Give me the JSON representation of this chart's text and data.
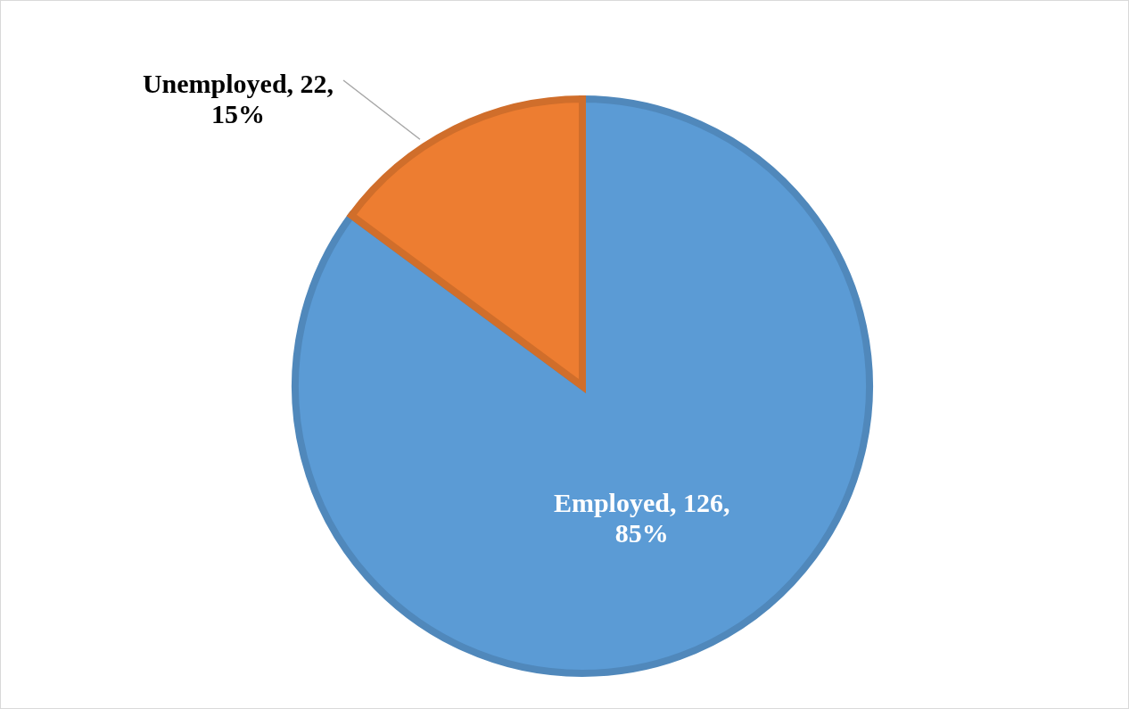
{
  "chart_data": {
    "type": "pie",
    "categories": [
      "Employed",
      "Unemployed"
    ],
    "values": [
      126,
      22
    ],
    "colors": [
      "#5b9bd5",
      "#ed7d31"
    ],
    "value_labels": [
      "126,\n85%",
      "22,\n15%"
    ]
  }
}
